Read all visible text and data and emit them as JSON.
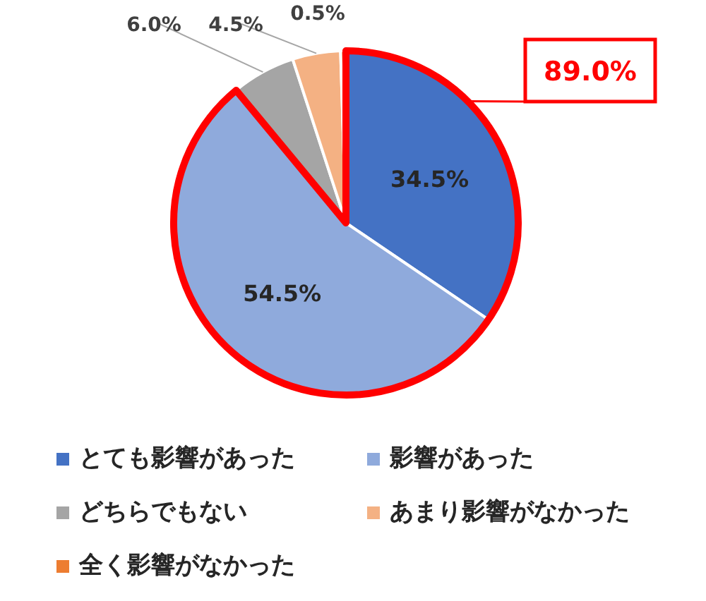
{
  "chart_data": {
    "type": "pie",
    "categories": [
      "とても影響があった",
      "影響があった",
      "どちらでもない",
      "あまり影響がなかった",
      "全く影響がなかった"
    ],
    "values": [
      34.5,
      54.5,
      6.0,
      4.5,
      0.5
    ],
    "colors": [
      "#4472c4",
      "#8faadc",
      "#a5a5a5",
      "#f4b183",
      "#ed7d31"
    ],
    "value_labels": [
      "34.5%",
      "54.5%",
      "6.0%",
      "4.5%",
      "0.5%"
    ],
    "legend": "bottom",
    "annotations": [
      "89.0%"
    ]
  }
}
